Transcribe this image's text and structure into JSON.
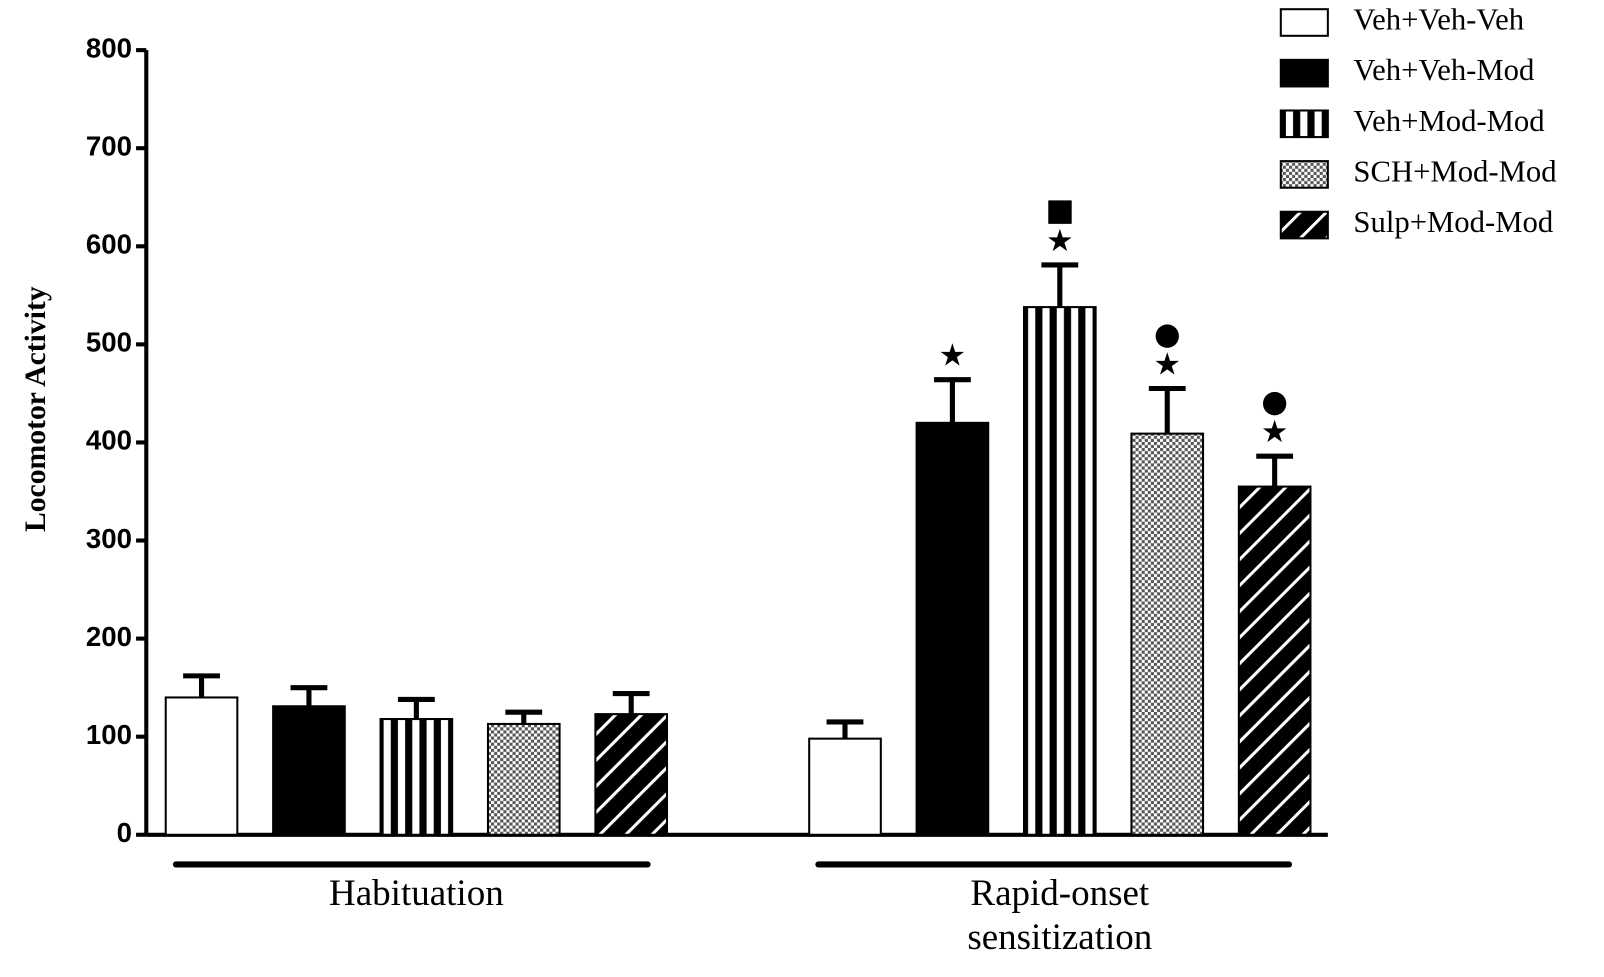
{
  "chart_data": {
    "type": "bar",
    "ylabel": "Locomotor Activity",
    "categories": [
      "Habituation",
      "Rapid-onset\nsensitization"
    ],
    "ylim": [
      0,
      800
    ],
    "yticks": [
      0,
      100,
      200,
      300,
      400,
      500,
      600,
      700,
      800
    ],
    "legend": "top-right",
    "series": [
      {
        "name": "Veh+Veh-Veh",
        "color": "#000000",
        "pattern": "none",
        "values": [
          140,
          98
        ],
        "errors": [
          22,
          17
        ],
        "annotations": [
          null,
          null
        ]
      },
      {
        "name": "Veh+Veh-Mod",
        "color": "#000000",
        "pattern": "solid",
        "values": [
          131,
          420
        ],
        "errors": [
          19,
          44
        ],
        "annotations": [
          null,
          [
            "★"
          ]
        ]
      },
      {
        "name": "Veh+Mod-Mod",
        "color": "#000000",
        "pattern": "vertical-stripes",
        "values": [
          118,
          538
        ],
        "errors": [
          20,
          43
        ],
        "annotations": [
          null,
          [
            "■",
            "★"
          ]
        ]
      },
      {
        "name": "SCH+Mod-Mod",
        "color": "#000000",
        "pattern": "checker",
        "values": [
          113,
          409
        ],
        "errors": [
          12,
          46
        ],
        "annotations": [
          null,
          [
            "●",
            "★"
          ]
        ]
      },
      {
        "name": "Sulp+Mod-Mod",
        "color": "#000000",
        "pattern": "diagonal-stripes",
        "values": [
          123,
          355
        ],
        "errors": [
          21,
          31
        ],
        "annotations": [
          null,
          [
            "●",
            "★"
          ]
        ]
      }
    ]
  }
}
